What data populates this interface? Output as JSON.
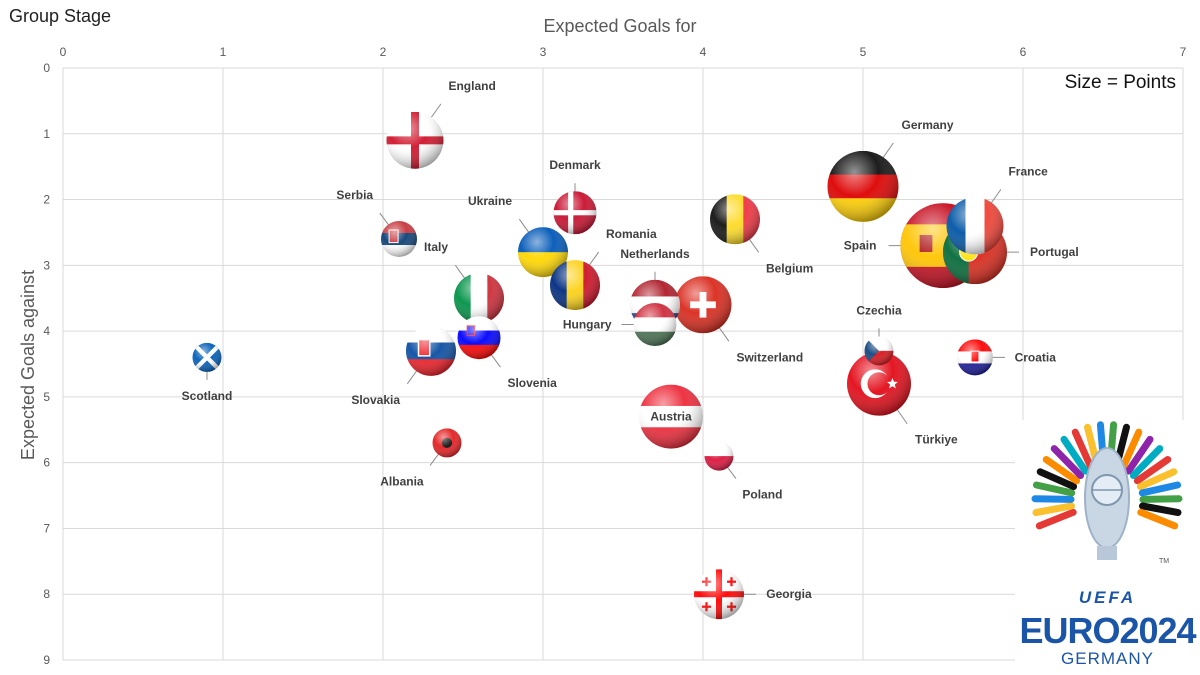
{
  "subtitle": "Group Stage",
  "size_note": "Size = Points",
  "logo": {
    "uefa": "UEFA",
    "euro": "EURO2024",
    "country": "GERMANY",
    "tm": "TM"
  },
  "chart_data": {
    "type": "scatter",
    "title": "",
    "xlabel": "Expected Goals for",
    "ylabel": "Expected Goals against",
    "xlim": [
      0,
      7
    ],
    "ylim": [
      0,
      9
    ],
    "y_reversed": true,
    "x_ticks": [
      0,
      1,
      2,
      3,
      4,
      5,
      6,
      7
    ],
    "y_ticks": [
      0,
      1,
      2,
      3,
      4,
      5,
      6,
      7,
      8,
      9
    ],
    "grid": true,
    "x_axis_position": "top",
    "size_encoding": "Points",
    "points": [
      {
        "label": "England",
        "x": 2.2,
        "y": 1.1,
        "points": 5,
        "flag": "england",
        "label_pos": "top-right"
      },
      {
        "label": "Germany",
        "x": 5.0,
        "y": 1.8,
        "points": 7,
        "flag": "germany",
        "label_pos": "top-right"
      },
      {
        "label": "France",
        "x": 5.7,
        "y": 2.4,
        "points": 5,
        "flag": "france",
        "label_pos": "top-right"
      },
      {
        "label": "Denmark",
        "x": 3.2,
        "y": 2.2,
        "points": 3,
        "flag": "denmark",
        "label_pos": "top"
      },
      {
        "label": "Serbia",
        "x": 2.1,
        "y": 2.6,
        "points": 2,
        "flag": "serbia",
        "label_pos": "top-left"
      },
      {
        "label": "Ukraine",
        "x": 3.0,
        "y": 2.8,
        "points": 4,
        "flag": "ukraine",
        "label_pos": "top-left"
      },
      {
        "label": "Romania",
        "x": 3.2,
        "y": 3.3,
        "points": 4,
        "flag": "romania",
        "label_pos": "top-right"
      },
      {
        "label": "Belgium",
        "x": 4.2,
        "y": 2.3,
        "points": 4,
        "flag": "belgium",
        "label_pos": "bottom-right"
      },
      {
        "label": "Spain",
        "x": 5.5,
        "y": 2.7,
        "points": 9,
        "flag": "spain",
        "label_pos": "left"
      },
      {
        "label": "Portugal",
        "x": 5.7,
        "y": 2.8,
        "points": 6,
        "flag": "portugal",
        "label_pos": "right"
      },
      {
        "label": "Italy",
        "x": 2.6,
        "y": 3.5,
        "points": 4,
        "flag": "italy",
        "label_pos": "top-left"
      },
      {
        "label": "Netherlands",
        "x": 3.7,
        "y": 3.6,
        "points": 4,
        "flag": "netherlands",
        "label_pos": "top"
      },
      {
        "label": "Switzerland",
        "x": 4.0,
        "y": 3.6,
        "points": 5,
        "flag": "switzerland",
        "label_pos": "bottom-right"
      },
      {
        "label": "Hungary",
        "x": 3.7,
        "y": 3.9,
        "points": 3,
        "flag": "hungary",
        "label_pos": "left"
      },
      {
        "label": "Slovakia",
        "x": 2.3,
        "y": 4.3,
        "points": 4,
        "flag": "slovakia",
        "label_pos": "bottom-left"
      },
      {
        "label": "Slovenia",
        "x": 2.6,
        "y": 4.1,
        "points": 3,
        "flag": "slovenia",
        "label_pos": "bottom-right"
      },
      {
        "label": "Scotland",
        "x": 0.9,
        "y": 4.4,
        "points": 1,
        "flag": "scotland",
        "label_pos": "bottom"
      },
      {
        "label": "Czechia",
        "x": 5.1,
        "y": 4.3,
        "points": 1,
        "flag": "czechia",
        "label_pos": "top"
      },
      {
        "label": "Croatia",
        "x": 5.7,
        "y": 4.4,
        "points": 2,
        "flag": "croatia",
        "label_pos": "right"
      },
      {
        "label": "Türkiye",
        "x": 5.1,
        "y": 4.8,
        "points": 6,
        "flag": "turkiye",
        "label_pos": "bottom-right"
      },
      {
        "label": "Austria",
        "x": 3.8,
        "y": 5.3,
        "points": 6,
        "flag": "austria",
        "label_pos": "center"
      },
      {
        "label": "Albania",
        "x": 2.4,
        "y": 5.7,
        "points": 1,
        "flag": "albania",
        "label_pos": "bottom-left"
      },
      {
        "label": "Poland",
        "x": 4.1,
        "y": 5.9,
        "points": 1,
        "flag": "poland",
        "label_pos": "bottom-right"
      },
      {
        "label": "Georgia",
        "x": 4.1,
        "y": 8.0,
        "points": 4,
        "flag": "georgia",
        "label_pos": "right"
      }
    ]
  }
}
